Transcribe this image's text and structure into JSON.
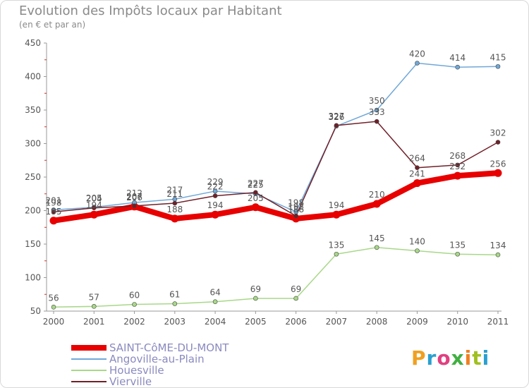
{
  "header": {
    "title": "Evolution des Impôts locaux par Habitant",
    "subtitle": "(en € et par an)"
  },
  "logo": {
    "text": "Proxiti",
    "colors": [
      "#f0a020",
      "#2aa0d0",
      "#e04080",
      "#40b040",
      "#f08020",
      "#a0c020",
      "#2aa0d0"
    ]
  },
  "chart_data": {
    "type": "line",
    "x": [
      "2000",
      "2001",
      "2002",
      "2003",
      "2004",
      "2005",
      "2006",
      "2007",
      "2008",
      "2009",
      "2010",
      "2011"
    ],
    "ylim": [
      50,
      450
    ],
    "yticks": [
      "50",
      "100",
      "150",
      "200",
      "250",
      "300",
      "350",
      "400",
      "450"
    ],
    "grid": false,
    "legend_position": "bottom-left",
    "series": [
      {
        "name": "SAINT-CôME-DU-MONT",
        "color": "#e80000",
        "width": 8,
        "values": [
          185,
          194,
          206,
          188,
          194,
          205,
          188,
          194,
          210,
          241,
          252,
          256
        ],
        "labels": [
          "185",
          "194",
          "206",
          "188",
          "194",
          "205",
          "188",
          "194",
          "210",
          "241",
          "252",
          "256"
        ]
      },
      {
        "name": "Angoville-au-Plain",
        "color": "#70a8d8",
        "width": 1.5,
        "values": [
          201,
          205,
          212,
          217,
          229,
          225,
          198,
          326,
          350,
          420,
          414,
          415
        ],
        "labels": [
          "201",
          "205",
          "212",
          "217",
          "229",
          "225",
          "198",
          "326",
          "350",
          "420",
          "414",
          "415"
        ]
      },
      {
        "name": "Houesville",
        "color": "#a8d888",
        "width": 1.5,
        "values": [
          56,
          57,
          60,
          61,
          64,
          69,
          69,
          135,
          145,
          140,
          135,
          134
        ],
        "labels": [
          "56",
          "57",
          "60",
          "61",
          "64",
          "69",
          "69",
          "135",
          "145",
          "140",
          "135",
          "134"
        ]
      },
      {
        "name": "Vierville",
        "color": "#702028",
        "width": 1.5,
        "values": [
          198,
          204,
          207,
          211,
          222,
          227,
          192,
          327,
          333,
          264,
          268,
          302
        ],
        "labels": [
          "198",
          "204",
          "207",
          "211",
          "222",
          "227",
          "192",
          "327",
          "333",
          "264",
          "268",
          "302"
        ]
      }
    ]
  }
}
